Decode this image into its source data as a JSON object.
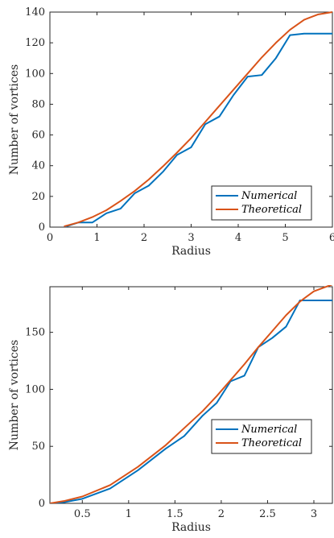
{
  "chart_data": [
    {
      "type": "line",
      "xlabel": "Radius",
      "ylabel": "Number of vortices",
      "xlim": [
        0,
        6
      ],
      "ylim": [
        0,
        140
      ],
      "xticks": [
        "0",
        "1",
        "2",
        "3",
        "4",
        "5",
        "6"
      ],
      "yticks": [
        "0",
        "20",
        "40",
        "60",
        "80",
        "100",
        "120",
        "140"
      ],
      "legend_position": "bottom-right",
      "series": [
        {
          "name": "Numerical",
          "color": "#0072BD",
          "x": [
            0.3,
            0.6,
            0.9,
            1.2,
            1.5,
            1.8,
            2.1,
            2.4,
            2.7,
            3.0,
            3.3,
            3.6,
            3.9,
            4.2,
            4.5,
            4.8,
            5.1,
            5.4,
            5.7,
            6.0
          ],
          "y": [
            0,
            3,
            3,
            9,
            12,
            22,
            27,
            36,
            47,
            52,
            67,
            72,
            86,
            98,
            99,
            110,
            125,
            126,
            126,
            126
          ]
        },
        {
          "name": "Theoretical",
          "color": "#D95319",
          "x": [
            0.3,
            0.6,
            0.9,
            1.2,
            1.5,
            1.8,
            2.1,
            2.4,
            2.7,
            3.0,
            3.3,
            3.6,
            3.9,
            4.2,
            4.5,
            4.8,
            5.1,
            5.4,
            5.7,
            6.0
          ],
          "y": [
            0.5,
            3,
            6.5,
            11,
            17,
            23.5,
            31,
            39.5,
            48.5,
            58,
            68.5,
            79,
            89.5,
            100,
            110.5,
            120,
            128.5,
            135,
            138.5,
            140
          ]
        }
      ]
    },
    {
      "type": "line",
      "xlabel": "Radius",
      "ylabel": "Number of vortices",
      "xlim": [
        0.15,
        3.2
      ],
      "ylim": [
        0,
        190
      ],
      "xticks": [
        "0.5",
        "1",
        "1.5",
        "2",
        "2.5",
        "3"
      ],
      "yticks": [
        "0",
        "50",
        "100",
        "150"
      ],
      "legend_position": "right",
      "series": [
        {
          "name": "Numerical",
          "color": "#0072BD",
          "x": [
            0.15,
            0.3,
            0.5,
            0.8,
            1.1,
            1.4,
            1.6,
            1.8,
            1.95,
            2.1,
            2.25,
            2.4,
            2.55,
            2.7,
            2.85,
            3.0,
            3.2
          ],
          "y": [
            0,
            1,
            4,
            13,
            29,
            48,
            59,
            77,
            88,
            107,
            112,
            137,
            145,
            155,
            178,
            178,
            178
          ]
        },
        {
          "name": "Theoretical",
          "color": "#D95319",
          "x": [
            0.15,
            0.3,
            0.5,
            0.8,
            1.1,
            1.4,
            1.6,
            1.8,
            1.95,
            2.1,
            2.25,
            2.4,
            2.55,
            2.7,
            2.85,
            3.0,
            3.2
          ],
          "y": [
            0,
            2,
            6,
            16,
            32,
            51,
            66,
            81,
            94,
            108,
            122,
            137,
            151,
            165,
            177,
            186,
            192
          ]
        }
      ]
    }
  ]
}
